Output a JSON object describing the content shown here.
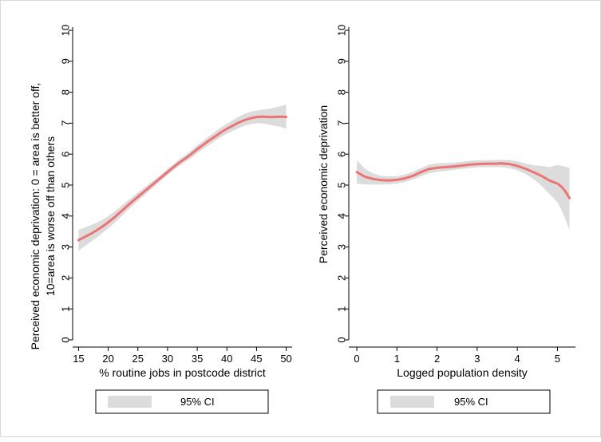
{
  "colors": {
    "line": "#ec7474",
    "band": "#dcdcdc",
    "axis": "#000000",
    "legend_border": "#000000"
  },
  "chart_data": [
    {
      "type": "line",
      "title": "",
      "xlabel": "% routine jobs in postcode district",
      "ylabel_line1": "Perceived economic deprivation: 0 = area is better off,",
      "ylabel_line2": "10=area is worse off than others",
      "xlim": [
        14,
        51
      ],
      "ylim": [
        0,
        10
      ],
      "xticks": [
        15,
        20,
        25,
        30,
        35,
        40,
        45,
        50
      ],
      "yticks": [
        0,
        1,
        2,
        3,
        4,
        5,
        6,
        7,
        8,
        9,
        10
      ],
      "legend": "95% CI",
      "x": [
        15,
        16,
        17,
        18,
        19,
        20,
        21,
        22,
        23,
        24,
        25,
        26,
        27,
        28,
        29,
        30,
        31,
        32,
        33,
        34,
        35,
        36,
        37,
        38,
        39,
        40,
        41,
        42,
        43,
        44,
        45,
        46,
        47,
        48,
        49,
        50
      ],
      "y": [
        3.22,
        3.32,
        3.42,
        3.53,
        3.66,
        3.8,
        3.95,
        4.12,
        4.29,
        4.46,
        4.62,
        4.78,
        4.94,
        5.1,
        5.26,
        5.42,
        5.58,
        5.73,
        5.86,
        6.0,
        6.16,
        6.3,
        6.44,
        6.57,
        6.7,
        6.82,
        6.92,
        7.02,
        7.1,
        7.16,
        7.2,
        7.21,
        7.2,
        7.2,
        7.21,
        7.2
      ],
      "ci_low": [
        2.88,
        3.02,
        3.16,
        3.3,
        3.45,
        3.6,
        3.77,
        3.95,
        4.14,
        4.32,
        4.49,
        4.66,
        4.83,
        5.0,
        5.16,
        5.32,
        5.48,
        5.62,
        5.75,
        5.88,
        6.03,
        6.17,
        6.3,
        6.43,
        6.55,
        6.66,
        6.75,
        6.84,
        6.92,
        6.97,
        7.0,
        6.99,
        6.96,
        6.92,
        6.88,
        6.82
      ],
      "ci_high": [
        3.55,
        3.63,
        3.7,
        3.78,
        3.88,
        4.0,
        4.14,
        4.3,
        4.45,
        4.6,
        4.76,
        4.91,
        5.06,
        5.21,
        5.36,
        5.52,
        5.68,
        5.84,
        5.97,
        6.12,
        6.29,
        6.43,
        6.58,
        6.72,
        6.86,
        6.98,
        7.1,
        7.21,
        7.3,
        7.37,
        7.41,
        7.44,
        7.46,
        7.5,
        7.55,
        7.6
      ]
    },
    {
      "type": "line",
      "title": "",
      "xlabel": "Logged population density",
      "ylabel_line1": "Perceived economic deprivation",
      "ylabel_line2": "",
      "xlim": [
        -0.2,
        5.45
      ],
      "ylim": [
        0,
        10
      ],
      "xticks": [
        0,
        1,
        2,
        3,
        4,
        5
      ],
      "yticks": [
        0,
        1,
        2,
        3,
        4,
        5,
        6,
        7,
        8,
        9,
        10
      ],
      "legend": "95% CI",
      "x": [
        0,
        0.2,
        0.4,
        0.6,
        0.8,
        1.0,
        1.2,
        1.4,
        1.6,
        1.8,
        2.0,
        2.2,
        2.4,
        2.6,
        2.8,
        3.0,
        3.2,
        3.4,
        3.6,
        3.8,
        4.0,
        4.2,
        4.4,
        4.6,
        4.8,
        5.0,
        5.1,
        5.2,
        5.3
      ],
      "y": [
        5.42,
        5.27,
        5.2,
        5.16,
        5.15,
        5.17,
        5.22,
        5.3,
        5.42,
        5.52,
        5.56,
        5.58,
        5.6,
        5.63,
        5.66,
        5.68,
        5.69,
        5.69,
        5.7,
        5.68,
        5.62,
        5.53,
        5.42,
        5.3,
        5.15,
        5.05,
        4.95,
        4.8,
        4.58
      ],
      "ci_low": [
        5.05,
        5.02,
        5.02,
        5.02,
        5.02,
        5.05,
        5.1,
        5.18,
        5.29,
        5.38,
        5.43,
        5.46,
        5.49,
        5.52,
        5.55,
        5.57,
        5.58,
        5.58,
        5.58,
        5.55,
        5.48,
        5.36,
        5.2,
        4.98,
        4.72,
        4.45,
        4.2,
        3.9,
        3.55
      ],
      "ci_high": [
        5.8,
        5.53,
        5.38,
        5.3,
        5.28,
        5.29,
        5.34,
        5.43,
        5.55,
        5.66,
        5.7,
        5.71,
        5.72,
        5.75,
        5.78,
        5.8,
        5.81,
        5.81,
        5.82,
        5.81,
        5.77,
        5.7,
        5.64,
        5.62,
        5.58,
        5.65,
        5.62,
        5.6,
        5.55
      ]
    }
  ]
}
